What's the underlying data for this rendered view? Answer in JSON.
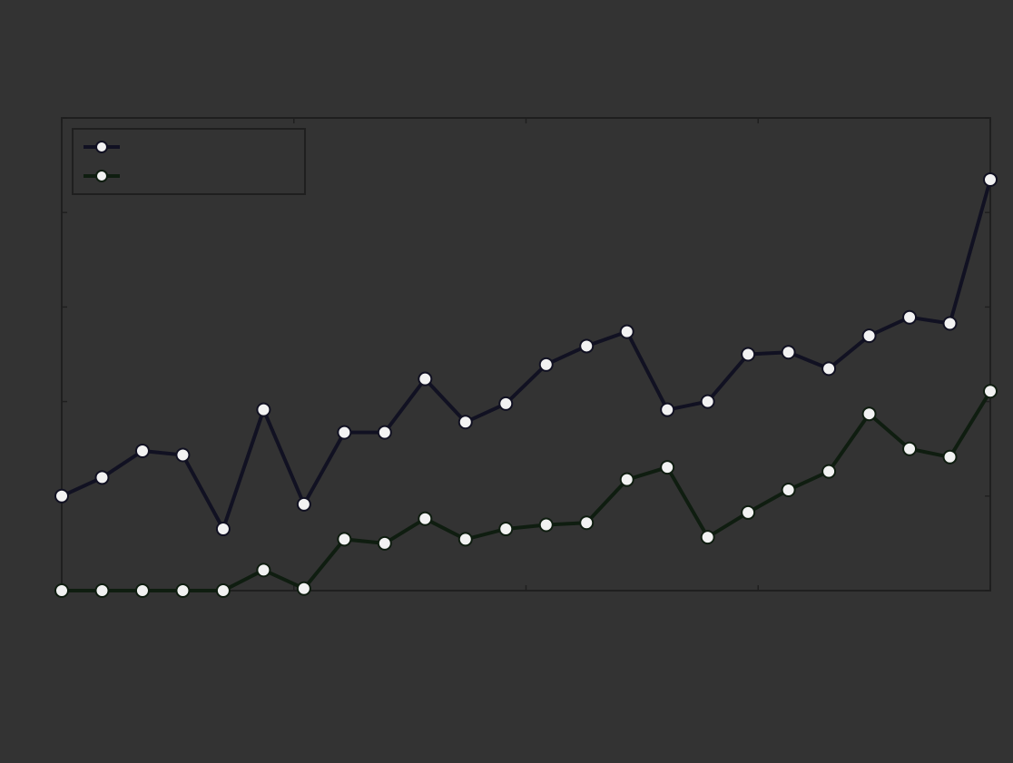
{
  "background": "#333333",
  "chart_data": {
    "type": "line",
    "title": "",
    "xlabel": "",
    "ylabel": "",
    "annotation": "",
    "grid": false,
    "legend_position": "top-left",
    "colors": {
      "axis": "#1f1f1f",
      "marker": "#f2f2f2",
      "text": "#f5f5f5"
    },
    "xlim": [
      0,
      23
    ],
    "ylim": [
      0,
      23
    ],
    "x_ticks": [
      "",
      "",
      "",
      "",
      ""
    ],
    "y_ticks": [
      "",
      "",
      "",
      "",
      "",
      ""
    ],
    "x": [
      0,
      1,
      2,
      3,
      4,
      5,
      6,
      7,
      8,
      9,
      10,
      11,
      12,
      13,
      14,
      15,
      16,
      17,
      18,
      19,
      20,
      21,
      22,
      23
    ],
    "series": [
      {
        "name": "",
        "color": "#111122",
        "values": [
          4.6,
          5.5,
          6.8,
          6.6,
          3.0,
          8.8,
          4.2,
          7.7,
          7.7,
          10.3,
          8.2,
          9.1,
          11.0,
          11.9,
          12.6,
          8.8,
          9.2,
          11.5,
          11.6,
          10.8,
          12.4,
          13.3,
          13.0,
          20.0
        ]
      },
      {
        "name": "",
        "color": "#0f1d10",
        "values": [
          0.0,
          0.0,
          0.0,
          0.0,
          0.0,
          1.0,
          0.1,
          2.5,
          2.3,
          3.5,
          2.5,
          3.0,
          3.2,
          3.3,
          5.4,
          6.0,
          2.6,
          3.8,
          4.9,
          5.8,
          8.6,
          6.9,
          6.5,
          9.7
        ]
      }
    ]
  }
}
